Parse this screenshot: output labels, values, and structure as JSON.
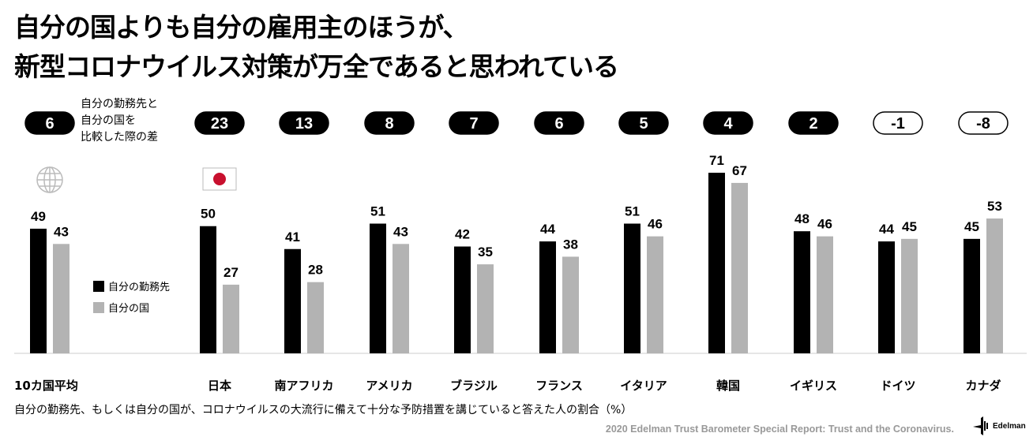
{
  "title": {
    "line1": "自分の国よりも自分の雇用主のほうが、",
    "line2": "新型コロナウイルス対策が万全であると思われている"
  },
  "diff_note": {
    "line1": "自分の勤務先と",
    "line2": "自分の国を",
    "line3": "比較した際の差"
  },
  "footnote": "自分の勤務先、もしくは自分の国が、コロナウイルスの大流行に備えて十分な予防措置を講じていると答えた人の割合（%）",
  "source": "2020 Edelman Trust Barometer Special Report: Trust and the Coronavirus.",
  "logo": "Edelman",
  "colors": {
    "employer": "#000000",
    "country": "#b3b3b3",
    "flag_red": "#c8102e"
  },
  "chart_data": {
    "type": "bar",
    "categories": [
      "10カ国平均",
      "日本",
      "南アフリカ",
      "アメリカ",
      "ブラジル",
      "フランス",
      "イタリア",
      "韓国",
      "イギリス",
      "ドイツ",
      "カナダ"
    ],
    "series": [
      {
        "name": "自分の勤務先",
        "values": [
          49,
          50,
          41,
          51,
          42,
          44,
          51,
          71,
          48,
          44,
          45
        ]
      },
      {
        "name": "自分の国",
        "values": [
          43,
          27,
          28,
          43,
          35,
          38,
          46,
          67,
          46,
          45,
          53
        ]
      }
    ],
    "differences": [
      "6",
      "23",
      "13",
      "8",
      "7",
      "6",
      "5",
      "4",
      "2",
      "-1",
      "-8"
    ],
    "ylim": [
      0,
      80
    ],
    "legend_placement": "left-middle"
  }
}
